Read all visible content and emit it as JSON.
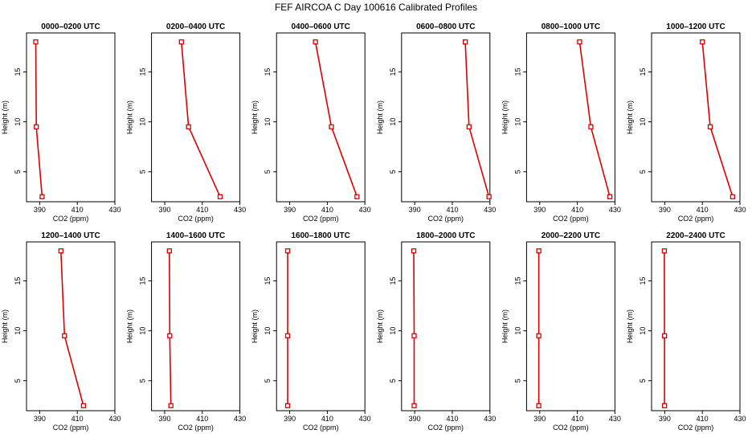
{
  "title": "FEF AIRCOA C  Day 100616  Calibrated Profiles",
  "colors": {
    "series": "#dd0000",
    "axis": "#000000",
    "background": "#ffffff"
  },
  "chart_data": [
    {
      "type": "line",
      "title": "0000–0200 UTC",
      "xlabel": "CO2 (ppm)",
      "ylabel": "Height (m)",
      "x": [
        387.9,
        388.2,
        391.3
      ],
      "y": [
        18,
        9.5,
        2.5
      ],
      "xticks": [
        390,
        410,
        430
      ],
      "yticks": [
        5,
        10,
        15
      ],
      "grid": false
    },
    {
      "type": "line",
      "title": "0200–0400 UTC",
      "xlabel": "CO2 (ppm)",
      "ylabel": "Height (m)",
      "x": [
        398.9,
        402.7,
        419.5
      ],
      "y": [
        18,
        9.5,
        2.5
      ],
      "xticks": [
        390,
        410,
        430
      ],
      "yticks": [
        5,
        10,
        15
      ],
      "grid": false
    },
    {
      "type": "line",
      "title": "0400–0600 UTC",
      "xlabel": "CO2 (ppm)",
      "ylabel": "Height (m)",
      "x": [
        403.7,
        412.2,
        425.8
      ],
      "y": [
        18,
        9.5,
        2.5
      ],
      "xticks": [
        390,
        410,
        430
      ],
      "yticks": [
        5,
        10,
        15
      ],
      "grid": false
    },
    {
      "type": "line",
      "title": "0600–0800 UTC",
      "xlabel": "CO2 (ppm)",
      "ylabel": "Height (m)",
      "x": [
        416.9,
        418.9,
        429.5
      ],
      "y": [
        18,
        9.5,
        2.5
      ],
      "xticks": [
        390,
        410,
        430
      ],
      "yticks": [
        5,
        10,
        15
      ],
      "grid": false
    },
    {
      "type": "line",
      "title": "0800–1000 UTC",
      "xlabel": "CO2 (ppm)",
      "ylabel": "Height (m)",
      "x": [
        411.2,
        417.2,
        427.3
      ],
      "y": [
        18,
        9.5,
        2.5
      ],
      "xticks": [
        390,
        410,
        430
      ],
      "yticks": [
        5,
        10,
        15
      ],
      "grid": false
    },
    {
      "type": "line",
      "title": "1000–1200 UTC",
      "xlabel": "CO2 (ppm)",
      "ylabel": "Height (m)",
      "x": [
        410.0,
        414.2,
        426.1
      ],
      "y": [
        18,
        9.5,
        2.5
      ],
      "xticks": [
        390,
        410,
        430
      ],
      "yticks": [
        5,
        10,
        15
      ],
      "grid": false
    },
    {
      "type": "line",
      "title": "1200–1400 UTC",
      "xlabel": "CO2 (ppm)",
      "ylabel": "Height (m)",
      "x": [
        401.3,
        403.2,
        413.3
      ],
      "y": [
        18,
        9.5,
        2.5
      ],
      "xticks": [
        390,
        410,
        430
      ],
      "yticks": [
        5,
        10,
        15
      ],
      "grid": false
    },
    {
      "type": "line",
      "title": "1400–1600 UTC",
      "xlabel": "CO2 (ppm)",
      "ylabel": "Height (m)",
      "x": [
        392.5,
        392.7,
        393.3
      ],
      "y": [
        18,
        9.5,
        2.5
      ],
      "xticks": [
        390,
        410,
        430
      ],
      "yticks": [
        5,
        10,
        15
      ],
      "grid": false
    },
    {
      "type": "line",
      "title": "1600–1800 UTC",
      "xlabel": "CO2 (ppm)",
      "ylabel": "Height (m)",
      "x": [
        388.9,
        388.9,
        388.9
      ],
      "y": [
        18,
        9.5,
        2.5
      ],
      "xticks": [
        390,
        410,
        430
      ],
      "yticks": [
        5,
        10,
        15
      ],
      "grid": false
    },
    {
      "type": "line",
      "title": "1800–2000 UTC",
      "xlabel": "CO2 (ppm)",
      "ylabel": "Height (m)",
      "x": [
        389.5,
        389.7,
        389.7
      ],
      "y": [
        18,
        9.5,
        2.5
      ],
      "xticks": [
        390,
        410,
        430
      ],
      "yticks": [
        5,
        10,
        15
      ],
      "grid": false
    },
    {
      "type": "line",
      "title": "2000–2200 UTC",
      "xlabel": "CO2 (ppm)",
      "ylabel": "Height (m)",
      "x": [
        389.5,
        389.5,
        389.5
      ],
      "y": [
        18,
        9.5,
        2.5
      ],
      "xticks": [
        390,
        410,
        430
      ],
      "yticks": [
        5,
        10,
        15
      ],
      "grid": false
    },
    {
      "type": "line",
      "title": "2200–2400 UTC",
      "xlabel": "CO2 (ppm)",
      "ylabel": "Height (m)",
      "x": [
        389.8,
        389.9,
        389.9
      ],
      "y": [
        18,
        9.5,
        2.5
      ],
      "xticks": [
        390,
        410,
        430
      ],
      "yticks": [
        5,
        10,
        15
      ],
      "grid": false
    }
  ]
}
